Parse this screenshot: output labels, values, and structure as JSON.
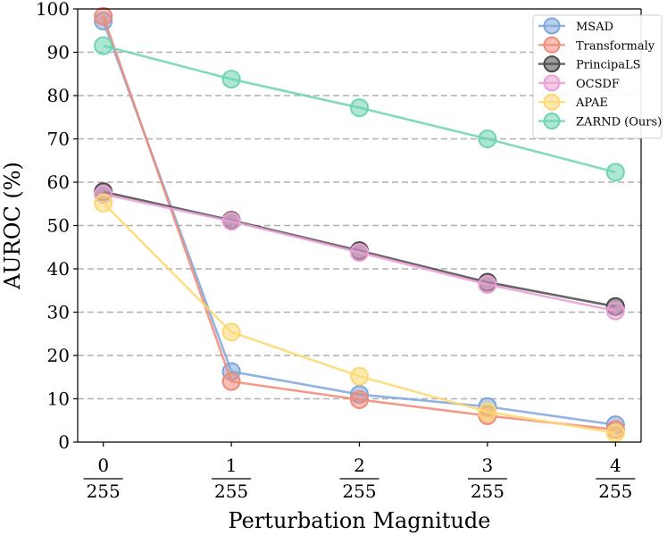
{
  "chart_data": {
    "type": "line",
    "xlabel": "Perturbation Magnitude",
    "ylabel": "AUROC (%)",
    "ylim": [
      0,
      100
    ],
    "xlim": [
      -0.2,
      4.2
    ],
    "x": [
      0,
      1,
      2,
      3,
      4
    ],
    "x_tick_labels": [
      {
        "numerator": "0",
        "denominator": "255"
      },
      {
        "numerator": "1",
        "denominator": "255"
      },
      {
        "numerator": "2",
        "denominator": "255"
      },
      {
        "numerator": "3",
        "denominator": "255"
      },
      {
        "numerator": "4",
        "denominator": "255"
      }
    ],
    "y_ticks": [
      0,
      10,
      20,
      30,
      40,
      50,
      60,
      70,
      80,
      90,
      100
    ],
    "grid": "horizontal-dashed",
    "legend_position": "top-right",
    "series": [
      {
        "name": "MSAD",
        "color": "#7ea6dc",
        "values": [
          97.2,
          16.3,
          11.0,
          8.2,
          4.0
        ]
      },
      {
        "name": "Transformaly",
        "color": "#f08a78",
        "values": [
          98.3,
          14.0,
          9.8,
          6.1,
          2.9
        ]
      },
      {
        "name": "PrincipaLS",
        "color": "#4a4a4a",
        "values": [
          57.8,
          51.2,
          44.2,
          36.9,
          31.3
        ]
      },
      {
        "name": "OCSDF",
        "color": "#ea9fd6",
        "values": [
          57.2,
          51.0,
          43.8,
          36.4,
          30.3
        ]
      },
      {
        "name": "APAE",
        "color": "#fdd870",
        "values": [
          55.2,
          25.4,
          15.2,
          7.0,
          2.1
        ]
      },
      {
        "name": "ZARND (Ours)",
        "color": "#6ed4b3",
        "values": [
          91.5,
          83.8,
          77.2,
          70.0,
          62.3
        ]
      }
    ]
  }
}
